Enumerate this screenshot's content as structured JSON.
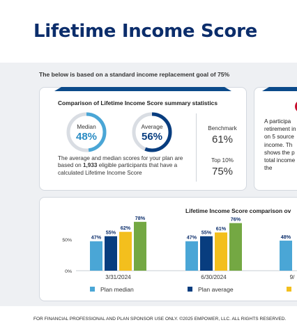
{
  "page_title": "Lifetime Income Score",
  "intro_text": "The below is based on a standard income replacement goal of 75%",
  "colors": {
    "navy": "#0b2d6b",
    "median_blue": "#4aa6d6",
    "average_navy": "#083d7f",
    "highlight_yellow": "#f3bf1d",
    "top_green": "#74a843",
    "alert_red": "#c8102e",
    "band_gray": "#eef0f3"
  },
  "summary_card": {
    "title": "Comparison of Lifetime Income Score summary statistics",
    "median": {
      "label": "Median",
      "value": "48%",
      "percent": 48
    },
    "average": {
      "label": "Average",
      "value": "56%",
      "percent": 56
    },
    "benchmark": {
      "label": "Benchmark",
      "value": "61%"
    },
    "top10": {
      "label": "Top 10%",
      "value": "75%"
    },
    "note_before": "The average and median scores for your plan are based on ",
    "note_count": "1,933",
    "note_after": " eligible participants that have a calculated Lifetime Income Score"
  },
  "info_card": {
    "icon": "alert-circle-icon",
    "lines": [
      "A participa",
      "retirement in",
      "on 5 source",
      "income. Th",
      "shows the p",
      "total income",
      "the"
    ]
  },
  "comparison_card": {
    "title": "Lifetime Income Score comparison ov"
  },
  "chart_data": {
    "type": "bar",
    "title": "Lifetime Income Score comparison ov",
    "categories": [
      "3/31/2024",
      "6/30/2024",
      "9/"
    ],
    "series": [
      {
        "name": "Plan median",
        "values": [
          47,
          47,
          48
        ],
        "color": "#4aa6d6"
      },
      {
        "name": "Plan average",
        "values": [
          55,
          55,
          null
        ],
        "color": "#083d7f"
      },
      {
        "name": "",
        "values": [
          62,
          61,
          null
        ],
        "color": "#f3bf1d"
      },
      {
        "name": "",
        "values": [
          78,
          76,
          null
        ],
        "color": "#74a843"
      }
    ],
    "value_labels": [
      [
        "47%",
        "55%",
        "62%",
        "78%"
      ],
      [
        "47%",
        "55%",
        "61%",
        "76%"
      ],
      [
        "48%"
      ]
    ],
    "y_ticks": [
      "50%",
      "0%"
    ],
    "ylim": [
      0,
      100
    ],
    "legend": [
      "Plan median",
      "Plan average"
    ],
    "legend_position": "bottom"
  },
  "footer_text": "FOR FINANCIAL PROFESSIONAL AND PLAN SPONSOR USE ONLY. ©2025 EMPOWER, LLC. ALL RIGHTS RESERVED."
}
